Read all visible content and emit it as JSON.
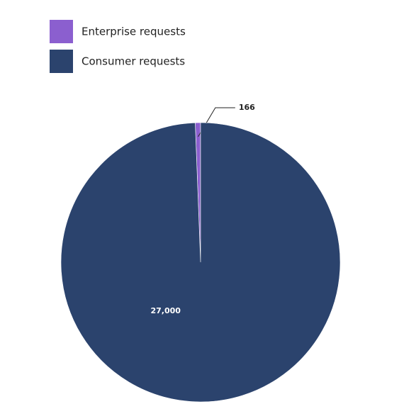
{
  "chart_data": {
    "type": "pie",
    "categories": [
      "Enterprise requests",
      "Consumer requests"
    ],
    "values": [
      166,
      27000
    ],
    "value_labels": [
      "166",
      "27,000"
    ],
    "colors": [
      "#8b5fcf",
      "#2b436d"
    ]
  }
}
